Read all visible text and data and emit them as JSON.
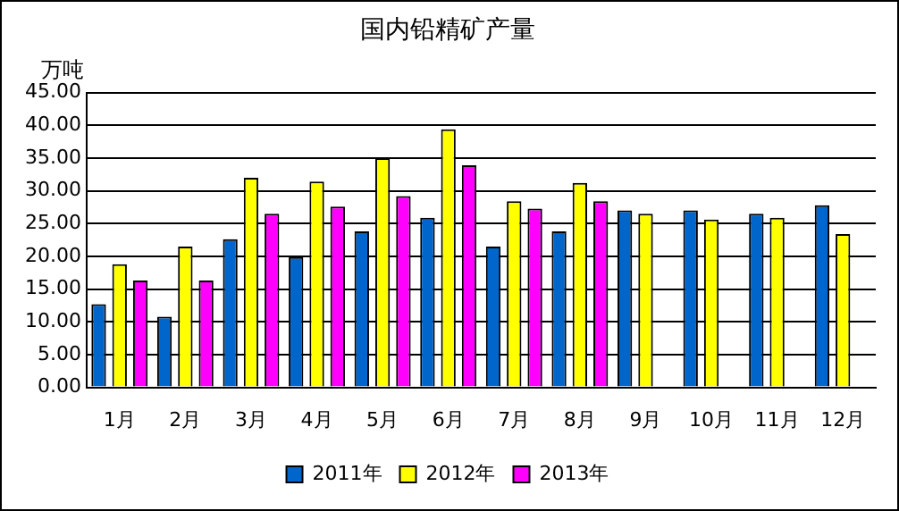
{
  "chart_data": {
    "type": "bar",
    "title": "国内铅精矿产量",
    "ylabel": "万吨",
    "categories": [
      "1月",
      "2月",
      "3月",
      "4月",
      "5月",
      "6月",
      "7月",
      "8月",
      "9月",
      "10月",
      "11月",
      "12月"
    ],
    "series": [
      {
        "name": "2011年",
        "color": "#0066cc",
        "values": [
          12.7,
          10.8,
          22.6,
          19.9,
          23.8,
          25.9,
          21.5,
          23.8,
          27.0,
          27.0,
          26.5,
          27.8
        ]
      },
      {
        "name": "2012年",
        "color": "#ffff00",
        "values": [
          18.8,
          21.5,
          32.0,
          31.4,
          35.0,
          39.4,
          28.4,
          31.2,
          26.5,
          25.6,
          25.9,
          23.4
        ]
      },
      {
        "name": "2013年",
        "color": "#ff00ff",
        "values": [
          16.3,
          16.3,
          26.5,
          27.6,
          29.2,
          33.9,
          27.3,
          28.4,
          null,
          null,
          null,
          null
        ]
      }
    ],
    "ylim": [
      0,
      45
    ],
    "yticks": [
      {
        "value": 0,
        "label": "0.00"
      },
      {
        "value": 5,
        "label": "5.00"
      },
      {
        "value": 10,
        "label": "10.00"
      },
      {
        "value": 15,
        "label": "15.00"
      },
      {
        "value": 20,
        "label": "20.00"
      },
      {
        "value": 25,
        "label": "25.00"
      },
      {
        "value": 30,
        "label": "30.00"
      },
      {
        "value": 35,
        "label": "35.00"
      },
      {
        "value": 40,
        "label": "40.00"
      },
      {
        "value": 45,
        "label": "45.00"
      }
    ],
    "grid": "y",
    "legend": "bottom"
  }
}
